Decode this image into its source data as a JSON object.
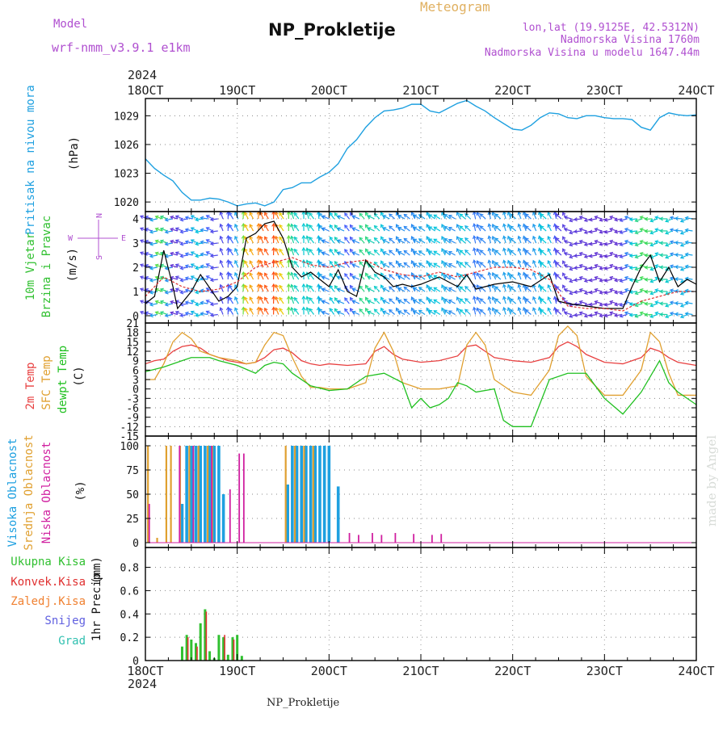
{
  "header": {
    "model_label": "Model",
    "model_name": "wrf-nmm_v3.9.1  e1km",
    "title": "NP_Prokletije",
    "subtitle": "Meteogram",
    "coords": "lon,lat (19.9125E, 42.5312N)",
    "elevation": "Nadmorska Visina 1760m",
    "model_elevation": "Nadmorska Visina u modelu 1647.44m",
    "footer": "NP_Prokletije",
    "credit": "made by Angel",
    "year_top": "2024",
    "year_bottom": "2024"
  },
  "colors": {
    "pressure": "#1ea0e0",
    "temp2m": "#e84040",
    "sfc": "#e0a030",
    "dew": "#20c020",
    "high_cloud": "#1ea0e0",
    "mid_cloud": "#e0a030",
    "low_cloud": "#d020a0",
    "total_precip": "#30c030",
    "conv_precip": "#e03030",
    "frz_precip": "#f08030",
    "snow": "#6060e0",
    "graupel": "#30c0b0",
    "model_text": "#b050d0",
    "subtitle_text": "#e0b060",
    "wind_slow": "#7020c0",
    "wind_fast": "#ff3010"
  },
  "chart_data": [
    {
      "id": "pressure",
      "type": "line",
      "ylabel": "Pritisak na nivou mora",
      "unit": "(hPa)",
      "x_labels": [
        "18OCT",
        "19OCT",
        "20OCT",
        "21OCT",
        "22OCT",
        "23OCT",
        "24OCT"
      ],
      "yticks": [
        1020,
        1023,
        1026,
        1029
      ],
      "ylim": [
        1019,
        1030.8
      ],
      "grid": true,
      "x": [
        18,
        18.1,
        18.2,
        18.3,
        18.4,
        18.5,
        18.6,
        18.7,
        18.8,
        18.9,
        19.0,
        19.1,
        19.2,
        19.3,
        19.4,
        19.5,
        19.6,
        19.7,
        19.8,
        19.9,
        20.0,
        20.1,
        20.2,
        20.3,
        20.4,
        20.5,
        20.6,
        20.7,
        20.8,
        20.9,
        21.0,
        21.1,
        21.2,
        21.3,
        21.4,
        21.5,
        21.6,
        21.7,
        21.8,
        21.9,
        22.0,
        22.1,
        22.2,
        22.3,
        22.4,
        22.5,
        22.6,
        22.7,
        22.8,
        22.9,
        23.0,
        23.1,
        23.2,
        23.3,
        23.4,
        23.5,
        23.6,
        23.7,
        23.8,
        23.9,
        24.0
      ],
      "y": [
        1024.5,
        1023.5,
        1022.8,
        1022.2,
        1021.0,
        1020.2,
        1020.2,
        1020.4,
        1020.3,
        1020.0,
        1019.6,
        1019.8,
        1019.9,
        1019.6,
        1020.0,
        1021.3,
        1021.5,
        1022.0,
        1022.0,
        1022.6,
        1023.1,
        1024.0,
        1025.6,
        1026.5,
        1027.8,
        1028.8,
        1029.5,
        1029.6,
        1029.8,
        1030.2,
        1030.2,
        1029.5,
        1029.3,
        1029.8,
        1030.3,
        1030.6,
        1030.0,
        1029.5,
        1028.8,
        1028.2,
        1027.6,
        1027.5,
        1028.0,
        1028.8,
        1029.3,
        1029.2,
        1028.8,
        1028.7,
        1029.0,
        1029.0,
        1028.8,
        1028.7,
        1028.7,
        1028.6,
        1027.8,
        1027.5,
        1028.8,
        1029.3,
        1029.1,
        1029.0,
        1029.1
      ]
    },
    {
      "id": "wind",
      "type": "line",
      "ylabel": "10m Vjetar",
      "ylabel2": "Brzina i Pravac",
      "unit": "(m/s)",
      "compass": [
        "N",
        "S",
        "W",
        "E"
      ],
      "yticks": [
        0,
        1,
        2,
        3,
        4
      ],
      "ylim": [
        -0.3,
        4.3
      ],
      "grid": true,
      "series": [
        {
          "name": "speed",
          "color": "#000000",
          "x": [
            18,
            18.1,
            18.2,
            18.3,
            18.35,
            18.5,
            18.6,
            18.8,
            18.9,
            19.0,
            19.1,
            19.2,
            19.3,
            19.4,
            19.5,
            19.6,
            19.7,
            19.8,
            19.9,
            20.0,
            20.1,
            20.2,
            20.3,
            20.4,
            20.5,
            20.6,
            20.7,
            20.8,
            20.9,
            21.0,
            21.2,
            21.4,
            21.5,
            21.6,
            21.8,
            22.0,
            22.2,
            22.4,
            22.5,
            22.6,
            22.8,
            23.0,
            23.2,
            23.3,
            23.4,
            23.5,
            23.6,
            23.7,
            23.8,
            23.9,
            24.0
          ],
          "y": [
            0.5,
            0.8,
            2.7,
            1.2,
            0.3,
            1.0,
            1.7,
            0.6,
            0.8,
            1.2,
            3.2,
            3.4,
            3.8,
            3.9,
            3.2,
            2.0,
            1.6,
            1.8,
            1.5,
            1.2,
            1.9,
            1.0,
            0.8,
            2.3,
            1.8,
            1.6,
            1.2,
            1.3,
            1.2,
            1.3,
            1.6,
            1.2,
            1.7,
            1.1,
            1.3,
            1.4,
            1.2,
            1.7,
            0.6,
            0.5,
            0.4,
            0.3,
            0.3,
            1.2,
            2.0,
            2.5,
            1.4,
            2.0,
            1.2,
            1.5,
            1.3
          ]
        },
        {
          "name": "gust",
          "color": "#e03030",
          "x": [
            18,
            18.2,
            18.4,
            18.6,
            18.8,
            19.0,
            19.2,
            19.4,
            19.6,
            19.8,
            20.0,
            20.2,
            20.4,
            20.6,
            20.8,
            21.0,
            21.2,
            21.4,
            21.6,
            21.8,
            22.0,
            22.2,
            22.4,
            22.6,
            22.8,
            23.0,
            23.2,
            23.4,
            23.6,
            23.8,
            24.0
          ],
          "y": [
            0.8,
            1.6,
            1.2,
            1.0,
            1.1,
            1.4,
            2.0,
            2.2,
            2.4,
            2.1,
            2.0,
            2.2,
            2.3,
            1.9,
            1.7,
            1.6,
            1.8,
            1.6,
            1.8,
            2.0,
            2.0,
            1.9,
            1.5,
            0.4,
            0.3,
            0.3,
            0.2,
            0.6,
            0.8,
            1.0,
            1.0
          ]
        }
      ]
    },
    {
      "id": "temperature",
      "type": "line",
      "ylabel": "2m Temp",
      "ylabel2": "SFC Temp",
      "ylabel3": "dewpt Temp",
      "unit": "(C)",
      "yticks": [
        -15,
        -12,
        -9,
        -6,
        -3,
        0,
        3,
        6,
        9,
        12,
        15,
        18,
        21
      ],
      "ylim": [
        -15,
        21
      ],
      "grid": true,
      "series": [
        {
          "name": "2m Temp",
          "color": "#e84040",
          "x": [
            18,
            18.1,
            18.2,
            18.3,
            18.4,
            18.5,
            18.6,
            18.7,
            18.8,
            18.9,
            19.0,
            19.1,
            19.2,
            19.3,
            19.4,
            19.5,
            19.6,
            19.7,
            19.8,
            19.9,
            20.0,
            20.2,
            20.4,
            20.5,
            20.6,
            20.7,
            20.8,
            21.0,
            21.2,
            21.4,
            21.5,
            21.6,
            21.7,
            21.8,
            22.0,
            22.2,
            22.4,
            22.5,
            22.6,
            22.7,
            22.8,
            23.0,
            23.2,
            23.4,
            23.5,
            23.6,
            23.7,
            23.8,
            24.0
          ],
          "y": [
            8,
            9,
            9.5,
            12,
            13.5,
            14,
            13,
            11,
            10,
            9,
            8.5,
            8,
            8.5,
            10,
            12.5,
            13,
            11.5,
            9,
            8,
            7.5,
            8,
            7.5,
            8,
            12,
            13.5,
            11,
            9.5,
            8.5,
            9,
            10.5,
            13.5,
            14,
            12,
            10,
            9,
            8.5,
            10,
            13.5,
            15,
            13.5,
            11,
            8.5,
            8,
            10,
            13,
            12,
            10,
            8.5,
            7.5
          ]
        },
        {
          "name": "SFC Temp",
          "color": "#e0a030",
          "x": [
            18,
            18.1,
            18.2,
            18.3,
            18.4,
            18.5,
            18.6,
            18.7,
            18.8,
            18.9,
            19.0,
            19.1,
            19.2,
            19.3,
            19.4,
            19.5,
            19.6,
            19.7,
            19.8,
            19.9,
            20.0,
            20.2,
            20.4,
            20.5,
            20.6,
            20.7,
            20.8,
            21.0,
            21.2,
            21.4,
            21.5,
            21.6,
            21.7,
            21.8,
            22.0,
            22.2,
            22.4,
            22.5,
            22.6,
            22.7,
            22.8,
            23.0,
            23.2,
            23.4,
            23.5,
            23.6,
            23.7,
            23.8,
            24.0
          ],
          "y": [
            3,
            3,
            8,
            15,
            18,
            16,
            12,
            11,
            10,
            9.5,
            9,
            8,
            8.5,
            14,
            18,
            17,
            10,
            4,
            0.5,
            0.5,
            0,
            0,
            2,
            13,
            18,
            12,
            2,
            0,
            0,
            1,
            14,
            18,
            14,
            3,
            -1,
            -2,
            6,
            17,
            20,
            17,
            4,
            -2,
            -2,
            6,
            18,
            15,
            5,
            -2,
            -2
          ]
        },
        {
          "name": "dewpt Temp",
          "color": "#20c020",
          "x": [
            18,
            18.2,
            18.4,
            18.5,
            18.6,
            18.7,
            18.8,
            19.0,
            19.2,
            19.3,
            19.4,
            19.5,
            19.6,
            19.8,
            20.0,
            20.2,
            20.4,
            20.6,
            20.8,
            20.9,
            21.0,
            21.1,
            21.2,
            21.3,
            21.4,
            21.5,
            21.6,
            21.8,
            21.9,
            22.0,
            22.1,
            22.2,
            22.4,
            22.6,
            22.8,
            23.0,
            23.2,
            23.4,
            23.6,
            23.7,
            23.8,
            24.0
          ],
          "y": [
            5.5,
            7,
            9,
            10,
            10,
            10,
            9,
            7.5,
            5,
            7.5,
            8.5,
            8,
            5,
            1,
            -0.5,
            0,
            4,
            5,
            2,
            -6,
            -3,
            -6,
            -5,
            -3,
            2,
            1,
            -1,
            0,
            -10,
            -12,
            -12,
            -12,
            3,
            5,
            5,
            -3,
            -8,
            -1,
            9,
            2,
            -1,
            -5
          ]
        }
      ]
    },
    {
      "id": "cloud",
      "type": "bar",
      "ylabel": "Visoka Oblacnost",
      "ylabel2": "Srednja Oblacnost",
      "ylabel3": "Niska Oblacnost",
      "unit": "(%)",
      "yticks": [
        0,
        25,
        50,
        75,
        100
      ],
      "ylim": [
        -5,
        110
      ],
      "grid": true,
      "series": [
        {
          "name": "Visoka Oblacnost",
          "color": "#1ea0e0",
          "x": [
            18.4,
            18.45,
            18.5,
            18.55,
            18.6,
            18.65,
            18.7,
            18.75,
            18.8,
            18.85,
            19.55,
            19.6,
            19.65,
            19.7,
            19.75,
            19.8,
            19.85,
            19.9,
            19.95,
            20.0,
            20.1
          ],
          "y": [
            40,
            100,
            100,
            100,
            100,
            100,
            100,
            100,
            100,
            50,
            60,
            100,
            100,
            100,
            100,
            100,
            100,
            100,
            100,
            100,
            58
          ]
        },
        {
          "name": "Srednja Oblacnost",
          "color": "#e0a030",
          "x": [
            18.05,
            18.15,
            18.25,
            18.3,
            18.4,
            18.5,
            18.6,
            18.7,
            18.75,
            19.55,
            19.65,
            19.75,
            19.85
          ],
          "y": [
            100,
            5,
            100,
            100,
            100,
            100,
            100,
            100,
            100,
            100,
            100,
            100,
            100
          ]
        },
        {
          "name": "Niska Oblacnost",
          "color": "#d020a0",
          "x": [
            18.02,
            18.35,
            18.5,
            18.7,
            18.9,
            19.0,
            19.05,
            20.2,
            20.3,
            20.45,
            20.55,
            20.7,
            20.9,
            21.1,
            21.2
          ],
          "y": [
            40,
            100,
            100,
            100,
            55,
            92,
            92,
            10,
            8,
            10,
            8,
            10,
            9,
            8,
            9
          ]
        }
      ]
    },
    {
      "id": "precip",
      "type": "bar",
      "ylabel": "1hr Precip",
      "unit": "(mm)",
      "legend": [
        "Ukupna  Kisa",
        "Konvek.Kisa",
        "Zaledj.Kisa",
        "Snijeg",
        "Grad"
      ],
      "x_labels": [
        "18OCT",
        "19OCT",
        "20OCT",
        "21OCT",
        "22OCT",
        "23OCT",
        "24OCT"
      ],
      "yticks": [
        0,
        0.2,
        0.4,
        0.6,
        0.8
      ],
      "ylim": [
        0,
        0.97
      ],
      "grid": true,
      "series": [
        {
          "name": "Ukupna  Kisa",
          "color": "#30c030",
          "x": [
            18.4,
            18.45,
            18.5,
            18.55,
            18.6,
            18.65,
            18.7,
            18.75,
            18.8,
            18.85,
            18.9,
            18.95,
            19.0,
            19.05
          ],
          "y": [
            0.12,
            0.22,
            0.18,
            0.15,
            0.32,
            0.44,
            0.08,
            0.02,
            0.22,
            0.2,
            0.05,
            0.2,
            0.22,
            0.04
          ]
        },
        {
          "name": "Konvek.Kisa",
          "color": "#e03030",
          "x": [
            18.45,
            18.55,
            18.65,
            18.85,
            18.95
          ],
          "y": [
            0.2,
            0.12,
            0.42,
            0.22,
            0.18
          ]
        }
      ]
    }
  ]
}
